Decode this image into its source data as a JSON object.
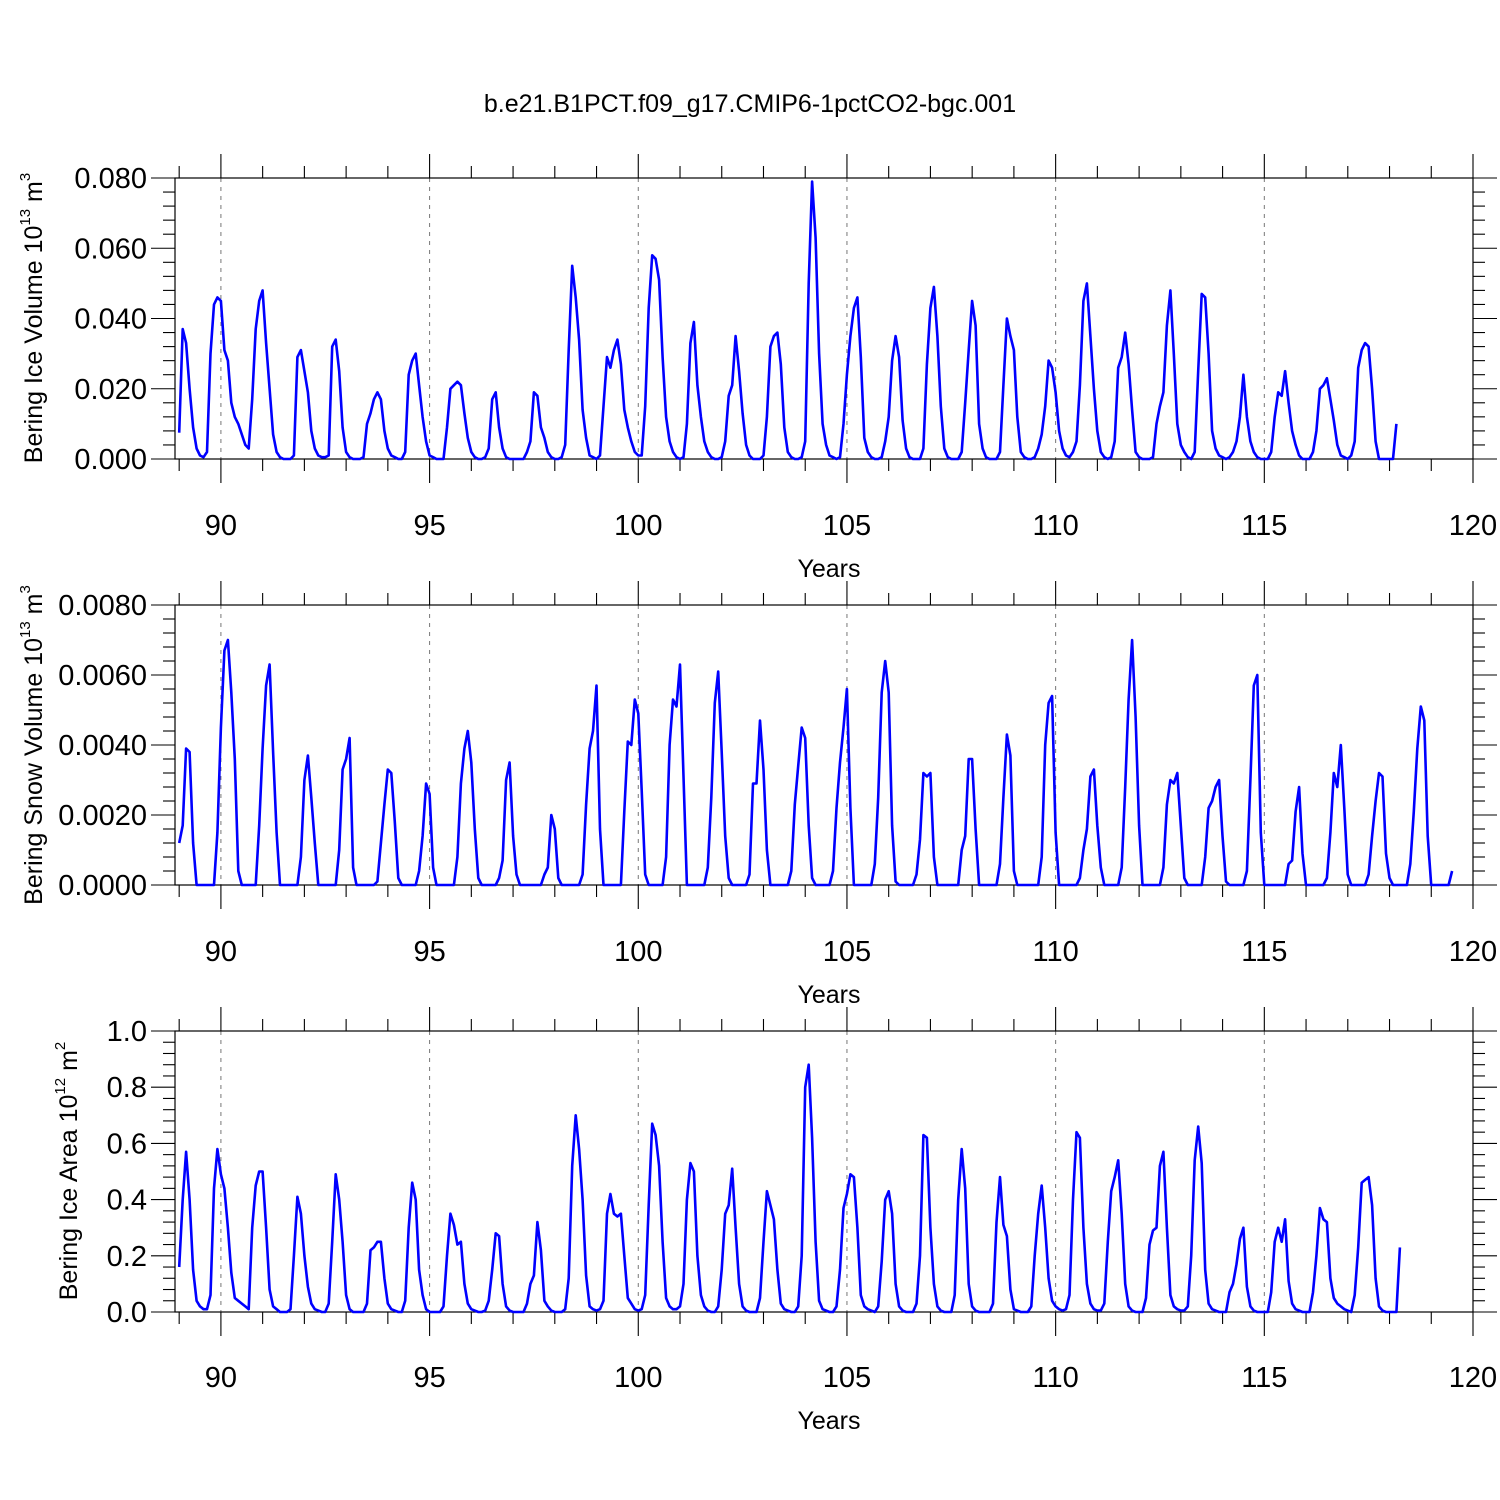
{
  "title": "b.e21.B1PCT.f09_g17.CMIP6-1pctCO2-bgc.001",
  "colors": {
    "line": "#0000ff",
    "frame": "#000000",
    "grid": "#777777"
  },
  "chart_data": [
    {
      "type": "line",
      "xlabel": "Years",
      "ylabel_prefix": "Bering Ice Volume 10",
      "ylabel_exp": "13",
      "ylabel_unit": " m",
      "ylabel_unit_exp": "3",
      "xlim": [
        88.9,
        120
      ],
      "ylim": [
        0,
        0.08
      ],
      "xticks": [
        90,
        95,
        100,
        105,
        110,
        115,
        120
      ],
      "xtick_labels": [
        "90",
        "95",
        "100",
        "105",
        "110",
        "115",
        "120"
      ],
      "yticks": [
        0,
        0.02,
        0.04,
        0.06,
        0.08
      ],
      "ytick_labels": [
        "0.000",
        "0.020",
        "0.040",
        "0.060",
        "0.080"
      ],
      "grid_x": true,
      "start_year": 89.0,
      "step_years": 0.08333,
      "y": [
        0.0075,
        0.037,
        0.033,
        0.02,
        0.009,
        0.003,
        0.001,
        0.0005,
        0.002,
        0.03,
        0.044,
        0.046,
        0.045,
        0.031,
        0.028,
        0.016,
        0.012,
        0.01,
        0.007,
        0.004,
        0.003,
        0.017,
        0.037,
        0.045,
        0.048,
        0.033,
        0.02,
        0.007,
        0.002,
        0.0005,
        0.0,
        0.0,
        0.0,
        0.001,
        0.029,
        0.031,
        0.025,
        0.019,
        0.008,
        0.003,
        0.001,
        0.0005,
        0.0005,
        0.001,
        0.032,
        0.034,
        0.025,
        0.009,
        0.002,
        0.0005,
        0.0,
        0.0,
        0.0,
        0.0005,
        0.01,
        0.013,
        0.017,
        0.019,
        0.017,
        0.008,
        0.003,
        0.001,
        0.0005,
        0.0,
        0.0,
        0.002,
        0.024,
        0.028,
        0.03,
        0.021,
        0.012,
        0.005,
        0.001,
        0.0005,
        0.0,
        0.0,
        0.0,
        0.009,
        0.02,
        0.021,
        0.022,
        0.021,
        0.013,
        0.006,
        0.002,
        0.0005,
        0.0,
        0.0,
        0.0005,
        0.003,
        0.017,
        0.019,
        0.009,
        0.003,
        0.0005,
        0.0,
        0.0,
        0.0,
        0.0,
        0.0,
        0.002,
        0.005,
        0.019,
        0.018,
        0.009,
        0.006,
        0.002,
        0.0005,
        0.0,
        0.0,
        0.0005,
        0.004,
        0.031,
        0.055,
        0.046,
        0.034,
        0.014,
        0.006,
        0.001,
        0.0005,
        0.0,
        0.001,
        0.015,
        0.029,
        0.026,
        0.031,
        0.034,
        0.027,
        0.014,
        0.009,
        0.005,
        0.002,
        0.001,
        0.001,
        0.015,
        0.043,
        0.058,
        0.057,
        0.051,
        0.029,
        0.012,
        0.005,
        0.002,
        0.0005,
        0.0,
        0.0005,
        0.01,
        0.033,
        0.039,
        0.021,
        0.012,
        0.005,
        0.002,
        0.0005,
        0.0,
        0.0,
        0.0005,
        0.005,
        0.018,
        0.021,
        0.035,
        0.025,
        0.013,
        0.004,
        0.001,
        0.0,
        0.0,
        0.0,
        0.001,
        0.012,
        0.032,
        0.035,
        0.036,
        0.027,
        0.009,
        0.002,
        0.0005,
        0.0,
        0.0,
        0.0005,
        0.005,
        0.05,
        0.079,
        0.063,
        0.03,
        0.01,
        0.004,
        0.001,
        0.0005,
        0.0,
        0.0005,
        0.01,
        0.024,
        0.035,
        0.043,
        0.046,
        0.029,
        0.006,
        0.002,
        0.0005,
        0.0,
        0.0,
        0.0005,
        0.005,
        0.012,
        0.028,
        0.035,
        0.029,
        0.011,
        0.003,
        0.0005,
        0.0,
        0.0,
        0.0,
        0.003,
        0.027,
        0.043,
        0.049,
        0.035,
        0.015,
        0.003,
        0.0005,
        0.0,
        0.0,
        0.0,
        0.002,
        0.016,
        0.031,
        0.045,
        0.038,
        0.01,
        0.003,
        0.0005,
        0.0,
        0.0,
        0.0,
        0.002,
        0.021,
        0.04,
        0.035,
        0.031,
        0.012,
        0.002,
        0.0005,
        0.0,
        0.0,
        0.0005,
        0.003,
        0.007,
        0.015,
        0.028,
        0.026,
        0.019,
        0.008,
        0.003,
        0.001,
        0.0005,
        0.002,
        0.005,
        0.021,
        0.045,
        0.05,
        0.035,
        0.02,
        0.008,
        0.002,
        0.0005,
        0.0,
        0.0005,
        0.005,
        0.026,
        0.029,
        0.036,
        0.027,
        0.014,
        0.002,
        0.0005,
        0.0,
        0.0,
        0.0,
        0.0005,
        0.01,
        0.015,
        0.019,
        0.038,
        0.048,
        0.03,
        0.01,
        0.004,
        0.002,
        0.0005,
        0.0,
        0.002,
        0.025,
        0.047,
        0.046,
        0.03,
        0.008,
        0.003,
        0.001,
        0.0005,
        0.0,
        0.0005,
        0.002,
        0.005,
        0.012,
        0.024,
        0.012,
        0.005,
        0.002,
        0.0005,
        0.0,
        0.0,
        0.0,
        0.002,
        0.012,
        0.019,
        0.018,
        0.025,
        0.016,
        0.008,
        0.004,
        0.001,
        0.0,
        0.0,
        0.0,
        0.002,
        0.008,
        0.02,
        0.021,
        0.023,
        0.017,
        0.011,
        0.004,
        0.001,
        0.0005,
        0.0,
        0.001,
        0.005,
        0.026,
        0.031,
        0.033,
        0.032,
        0.02,
        0.005,
        0.0,
        0.0,
        0.0,
        0.0,
        0.0,
        0.01
      ]
    },
    {
      "type": "line",
      "xlabel": "Years",
      "ylabel_prefix": "Bering Snow Volume 10",
      "ylabel_exp": "13",
      "ylabel_unit": " m",
      "ylabel_unit_exp": "3",
      "xlim": [
        88.9,
        120
      ],
      "ylim": [
        0,
        0.008
      ],
      "xticks": [
        90,
        95,
        100,
        105,
        110,
        115,
        120
      ],
      "xtick_labels": [
        "90",
        "95",
        "100",
        "105",
        "110",
        "115",
        "120"
      ],
      "yticks": [
        0,
        0.002,
        0.004,
        0.006,
        0.008
      ],
      "ytick_labels": [
        "0.0000",
        "0.0020",
        "0.0040",
        "0.0060",
        "0.0080"
      ],
      "grid_x": true,
      "start_year": 89.0,
      "step_years": 0.08333,
      "y": [
        0.0012,
        0.0017,
        0.0039,
        0.0038,
        0.0012,
        0.0,
        0.0,
        0.0,
        0.0,
        0.0,
        0.0,
        0.0015,
        0.0045,
        0.0067,
        0.007,
        0.0055,
        0.0036,
        0.0004,
        0.0,
        0.0,
        0.0,
        0.0,
        0.0,
        0.0017,
        0.0039,
        0.0057,
        0.0063,
        0.0038,
        0.0015,
        0.0,
        0.0,
        0.0,
        0.0,
        0.0,
        0.0,
        0.0008,
        0.003,
        0.0037,
        0.0025,
        0.0012,
        0.0,
        0.0,
        0.0,
        0.0,
        0.0,
        0.0,
        0.001,
        0.0033,
        0.0036,
        0.0042,
        0.0005,
        0.0,
        0.0,
        0.0,
        0.0,
        0.0,
        0.0,
        0.0001,
        0.0012,
        0.0023,
        0.0033,
        0.0032,
        0.0018,
        0.0002,
        0.0,
        0.0,
        0.0,
        0.0,
        0.0,
        0.0004,
        0.0014,
        0.0029,
        0.0026,
        0.0005,
        0.0,
        0.0,
        0.0,
        0.0,
        0.0,
        0.0,
        0.0008,
        0.0029,
        0.0039,
        0.0044,
        0.0035,
        0.0016,
        0.0002,
        0.0,
        0.0,
        0.0,
        0.0,
        0.0,
        0.0002,
        0.0007,
        0.003,
        0.0035,
        0.0014,
        0.0003,
        0.0,
        0.0,
        0.0,
        0.0,
        0.0,
        0.0,
        0.0,
        0.0003,
        0.0005,
        0.002,
        0.0016,
        0.0002,
        0.0,
        0.0,
        0.0,
        0.0,
        0.0,
        0.0,
        0.0003,
        0.0023,
        0.0039,
        0.0044,
        0.0057,
        0.0016,
        0.0,
        0.0,
        0.0,
        0.0,
        0.0,
        0.0,
        0.0021,
        0.0041,
        0.004,
        0.0053,
        0.0049,
        0.0027,
        0.0003,
        0.0,
        0.0,
        0.0,
        0.0,
        0.0,
        0.0008,
        0.004,
        0.0053,
        0.0051,
        0.0063,
        0.0031,
        0.0,
        0.0,
        0.0,
        0.0,
        0.0,
        0.0,
        0.0005,
        0.0025,
        0.0052,
        0.0061,
        0.0038,
        0.0014,
        0.0002,
        0.0,
        0.0,
        0.0,
        0.0,
        0.0,
        0.0003,
        0.0029,
        0.0029,
        0.0047,
        0.0033,
        0.001,
        0.0,
        0.0,
        0.0,
        0.0,
        0.0,
        0.0,
        0.0004,
        0.0023,
        0.0034,
        0.0045,
        0.0042,
        0.0017,
        0.0002,
        0.0,
        0.0,
        0.0,
        0.0,
        0.0,
        0.0004,
        0.0022,
        0.0035,
        0.0045,
        0.0056,
        0.0022,
        0.0,
        0.0,
        0.0,
        0.0,
        0.0,
        0.0,
        0.0006,
        0.0025,
        0.0055,
        0.0064,
        0.0055,
        0.0017,
        0.0001,
        0.0,
        0.0,
        0.0,
        0.0,
        0.0,
        0.0003,
        0.0013,
        0.0032,
        0.0031,
        0.0032,
        0.0008,
        0.0,
        0.0,
        0.0,
        0.0,
        0.0,
        0.0,
        0.0,
        0.001,
        0.0014,
        0.0036,
        0.0036,
        0.0016,
        0.0,
        0.0,
        0.0,
        0.0,
        0.0,
        0.0,
        0.0006,
        0.0025,
        0.0043,
        0.0037,
        0.0004,
        0.0,
        0.0,
        0.0,
        0.0,
        0.0,
        0.0,
        0.0,
        0.0008,
        0.004,
        0.0052,
        0.0054,
        0.0015,
        0.0,
        0.0,
        0.0,
        0.0,
        0.0,
        0.0,
        0.0002,
        0.001,
        0.0016,
        0.0031,
        0.0033,
        0.0017,
        0.0005,
        0.0,
        0.0,
        0.0,
        0.0,
        0.0,
        0.0005,
        0.0028,
        0.0053,
        0.007,
        0.0048,
        0.0017,
        0.0,
        0.0,
        0.0,
        0.0,
        0.0,
        0.0,
        0.0005,
        0.0023,
        0.003,
        0.0029,
        0.0032,
        0.0017,
        0.0002,
        0.0,
        0.0,
        0.0,
        0.0,
        0.0,
        0.0008,
        0.0022,
        0.0024,
        0.0028,
        0.003,
        0.0014,
        0.0001,
        0.0,
        0.0,
        0.0,
        0.0,
        0.0,
        0.0004,
        0.003,
        0.0057,
        0.006,
        0.0015,
        0.0,
        0.0,
        0.0,
        0.0,
        0.0,
        0.0,
        0.0,
        0.0006,
        0.0007,
        0.0021,
        0.0028,
        0.0009,
        0.0,
        0.0,
        0.0,
        0.0,
        0.0,
        0.0,
        0.0002,
        0.0015,
        0.0032,
        0.0028,
        0.004,
        0.0022,
        0.0003,
        0.0,
        0.0,
        0.0,
        0.0,
        0.0,
        0.0003,
        0.0014,
        0.0024,
        0.0032,
        0.0031,
        0.0009,
        0.0002,
        0.0,
        0.0,
        0.0,
        0.0,
        0.0,
        0.0006,
        0.0021,
        0.0039,
        0.0051,
        0.0047,
        0.0014,
        0.0,
        0.0,
        0.0,
        0.0,
        0.0,
        0.0,
        0.0004
      ]
    },
    {
      "type": "line",
      "xlabel": "Years",
      "ylabel_prefix": "Bering Ice Area 10",
      "ylabel_exp": "12",
      "ylabel_unit": " m",
      "ylabel_unit_exp": "2",
      "xlim": [
        88.9,
        120
      ],
      "ylim": [
        0,
        1.0
      ],
      "xticks": [
        90,
        95,
        100,
        105,
        110,
        115,
        120
      ],
      "xtick_labels": [
        "90",
        "95",
        "100",
        "105",
        "110",
        "115",
        "120"
      ],
      "yticks": [
        0,
        0.2,
        0.4,
        0.6,
        0.8,
        1.0
      ],
      "ytick_labels": [
        "0.0",
        "0.2",
        "0.4",
        "0.6",
        "0.8",
        "1.0"
      ],
      "grid_x": true,
      "start_year": 89.0,
      "step_years": 0.08333,
      "y": [
        0.16,
        0.4,
        0.57,
        0.4,
        0.15,
        0.04,
        0.02,
        0.01,
        0.01,
        0.06,
        0.44,
        0.58,
        0.49,
        0.44,
        0.3,
        0.14,
        0.05,
        0.04,
        0.03,
        0.02,
        0.01,
        0.3,
        0.45,
        0.5,
        0.5,
        0.3,
        0.08,
        0.02,
        0.01,
        0.0,
        0.0,
        0.0,
        0.01,
        0.2,
        0.41,
        0.35,
        0.2,
        0.09,
        0.03,
        0.01,
        0.005,
        0.0,
        0.0,
        0.03,
        0.25,
        0.49,
        0.4,
        0.25,
        0.06,
        0.01,
        0.0,
        0.0,
        0.0,
        0.0,
        0.03,
        0.22,
        0.23,
        0.25,
        0.25,
        0.12,
        0.03,
        0.01,
        0.005,
        0.0,
        0.0,
        0.04,
        0.3,
        0.46,
        0.4,
        0.15,
        0.06,
        0.01,
        0.0,
        0.0,
        0.0,
        0.0,
        0.02,
        0.2,
        0.35,
        0.31,
        0.24,
        0.25,
        0.1,
        0.03,
        0.01,
        0.005,
        0.0,
        0.0,
        0.005,
        0.04,
        0.15,
        0.28,
        0.27,
        0.1,
        0.02,
        0.005,
        0.0,
        0.0,
        0.0,
        0.0,
        0.03,
        0.1,
        0.13,
        0.32,
        0.22,
        0.04,
        0.02,
        0.005,
        0.0,
        0.0,
        0.0,
        0.01,
        0.12,
        0.52,
        0.7,
        0.58,
        0.4,
        0.13,
        0.02,
        0.01,
        0.005,
        0.01,
        0.04,
        0.35,
        0.42,
        0.35,
        0.34,
        0.35,
        0.2,
        0.05,
        0.03,
        0.01,
        0.005,
        0.01,
        0.06,
        0.38,
        0.67,
        0.63,
        0.52,
        0.25,
        0.05,
        0.02,
        0.01,
        0.01,
        0.02,
        0.1,
        0.4,
        0.53,
        0.5,
        0.2,
        0.06,
        0.02,
        0.005,
        0.0,
        0.0,
        0.02,
        0.15,
        0.35,
        0.38,
        0.51,
        0.3,
        0.1,
        0.02,
        0.005,
        0.0,
        0.0,
        0.0,
        0.05,
        0.25,
        0.43,
        0.38,
        0.33,
        0.15,
        0.03,
        0.01,
        0.005,
        0.0,
        0.0,
        0.02,
        0.2,
        0.8,
        0.88,
        0.62,
        0.25,
        0.04,
        0.01,
        0.005,
        0.0,
        0.0,
        0.02,
        0.15,
        0.37,
        0.42,
        0.49,
        0.48,
        0.3,
        0.06,
        0.02,
        0.01,
        0.005,
        0.0,
        0.02,
        0.18,
        0.4,
        0.43,
        0.35,
        0.1,
        0.02,
        0.005,
        0.0,
        0.0,
        0.0,
        0.03,
        0.2,
        0.63,
        0.62,
        0.3,
        0.1,
        0.02,
        0.005,
        0.0,
        0.0,
        0.0,
        0.06,
        0.4,
        0.58,
        0.44,
        0.1,
        0.02,
        0.005,
        0.0,
        0.0,
        0.0,
        0.0,
        0.03,
        0.32,
        0.48,
        0.31,
        0.27,
        0.08,
        0.01,
        0.005,
        0.0,
        0.0,
        0.0,
        0.02,
        0.2,
        0.35,
        0.45,
        0.3,
        0.12,
        0.04,
        0.02,
        0.01,
        0.005,
        0.01,
        0.06,
        0.4,
        0.64,
        0.62,
        0.3,
        0.1,
        0.03,
        0.01,
        0.005,
        0.005,
        0.03,
        0.25,
        0.43,
        0.48,
        0.54,
        0.35,
        0.1,
        0.02,
        0.005,
        0.0,
        0.0,
        0.0,
        0.05,
        0.24,
        0.29,
        0.3,
        0.52,
        0.57,
        0.3,
        0.06,
        0.02,
        0.01,
        0.005,
        0.005,
        0.02,
        0.2,
        0.54,
        0.66,
        0.53,
        0.15,
        0.03,
        0.01,
        0.005,
        0.0,
        0.0,
        0.0,
        0.07,
        0.1,
        0.17,
        0.26,
        0.3,
        0.09,
        0.02,
        0.005,
        0.0,
        0.0,
        0.0,
        0.0,
        0.07,
        0.25,
        0.3,
        0.25,
        0.33,
        0.11,
        0.03,
        0.01,
        0.005,
        0.0,
        0.0,
        0.0,
        0.07,
        0.2,
        0.37,
        0.33,
        0.32,
        0.12,
        0.05,
        0.03,
        0.02,
        0.01,
        0.005,
        0.0,
        0.06,
        0.23,
        0.46,
        0.47,
        0.48,
        0.38,
        0.12,
        0.02,
        0.005,
        0.0,
        0.0,
        0.0,
        0.0,
        0.23
      ]
    }
  ]
}
